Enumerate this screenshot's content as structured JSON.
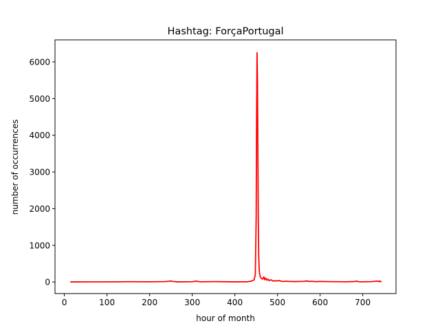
{
  "chart_data": {
    "type": "line",
    "title": "Hashtag: ForçaPortugal",
    "xlabel": "hour of month",
    "ylabel": "number of occurrences",
    "xlim": [
      -22,
      778
    ],
    "ylim": [
      -315,
      6600
    ],
    "xticks": [
      0,
      100,
      200,
      300,
      400,
      500,
      600,
      700
    ],
    "yticks": [
      0,
      1000,
      2000,
      3000,
      4000,
      5000,
      6000
    ],
    "grid": false,
    "series": [
      {
        "color": "#ff0000",
        "x": [
          14,
          50,
          100,
          150,
          200,
          235,
          245,
          250,
          255,
          265,
          300,
          308,
          310,
          312,
          320,
          350,
          400,
          430,
          440,
          445,
          448,
          450,
          451,
          452,
          453,
          454,
          455,
          456,
          457,
          458,
          460,
          462,
          465,
          468,
          470,
          472,
          475,
          478,
          480,
          485,
          490,
          495,
          500,
          505,
          510,
          520,
          540,
          560,
          570,
          575,
          580,
          590,
          600,
          620,
          640,
          660,
          680,
          685,
          690,
          700,
          720,
          735,
          738,
          740,
          742,
          744
        ],
        "y": [
          2,
          3,
          4,
          8,
          6,
          10,
          20,
          28,
          15,
          5,
          8,
          20,
          30,
          15,
          6,
          10,
          5,
          6,
          30,
          60,
          200,
          1800,
          4500,
          6250,
          5500,
          3500,
          1600,
          700,
          350,
          220,
          130,
          100,
          80,
          140,
          60,
          110,
          50,
          80,
          40,
          60,
          25,
          35,
          30,
          40,
          15,
          20,
          12,
          18,
          28,
          15,
          20,
          10,
          15,
          10,
          8,
          6,
          12,
          25,
          8,
          6,
          10,
          25,
          8,
          30,
          10,
          4
        ]
      }
    ]
  }
}
